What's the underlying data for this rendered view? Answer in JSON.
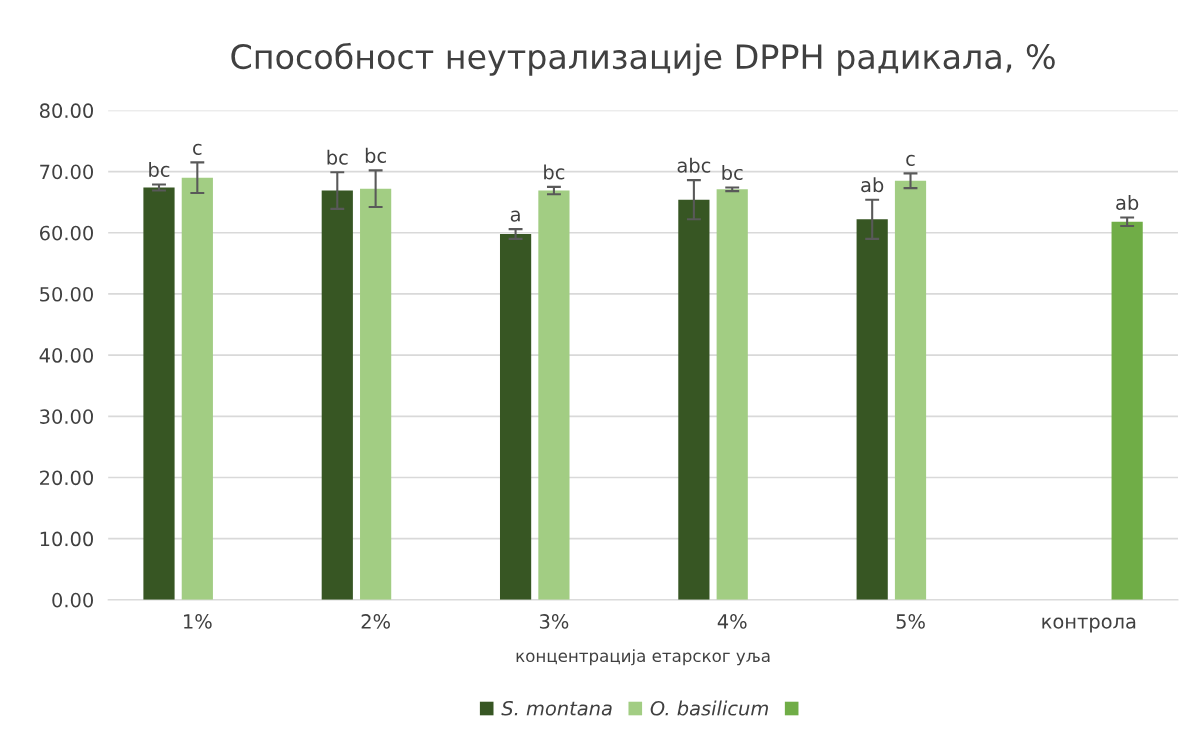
{
  "chart_data": {
    "type": "bar",
    "title": "Способност неутрализације DPPH радикала, %",
    "xlabel": "концентрација етарског уља",
    "categories": [
      "1%",
      "2%",
      "3%",
      "4%",
      "5%",
      "контрола"
    ],
    "series": [
      {
        "name": "S. montana",
        "color": "#375623",
        "values": [
          67.4,
          66.9,
          59.8,
          65.4,
          62.2,
          null
        ],
        "errors": [
          0.5,
          3.0,
          0.8,
          3.2,
          3.2,
          null
        ],
        "value_labels": [
          "bc",
          "bc",
          "a",
          "abc",
          "ab",
          null
        ]
      },
      {
        "name": "O. basilicum",
        "color": "#a2cd83",
        "values": [
          69.0,
          67.2,
          66.9,
          67.1,
          68.5,
          null
        ],
        "errors": [
          2.5,
          3.0,
          0.6,
          0.3,
          1.2,
          null
        ],
        "value_labels": [
          "c",
          "bc",
          "bc",
          "bc",
          "c",
          null
        ]
      },
      {
        "color": "#70ad47",
        "values": [
          null,
          null,
          null,
          null,
          null,
          61.8
        ],
        "errors": [
          null,
          null,
          null,
          null,
          null,
          0.7
        ],
        "value_labels": [
          null,
          null,
          null,
          null,
          null,
          "ab"
        ]
      }
    ],
    "ylim": [
      0,
      80
    ],
    "yticks": [
      {
        "value": 0,
        "label": "0.00"
      },
      {
        "value": 10,
        "label": "10.00"
      },
      {
        "value": 20,
        "label": "20.00"
      },
      {
        "value": 30,
        "label": "30.00"
      },
      {
        "value": 40,
        "label": "40.00"
      },
      {
        "value": 50,
        "label": "50.00"
      },
      {
        "value": 60,
        "label": "60.00"
      },
      {
        "value": 70,
        "label": "70.00"
      },
      {
        "value": 80,
        "label": "80.00"
      }
    ],
    "grid": "y",
    "legend": "bottom"
  }
}
